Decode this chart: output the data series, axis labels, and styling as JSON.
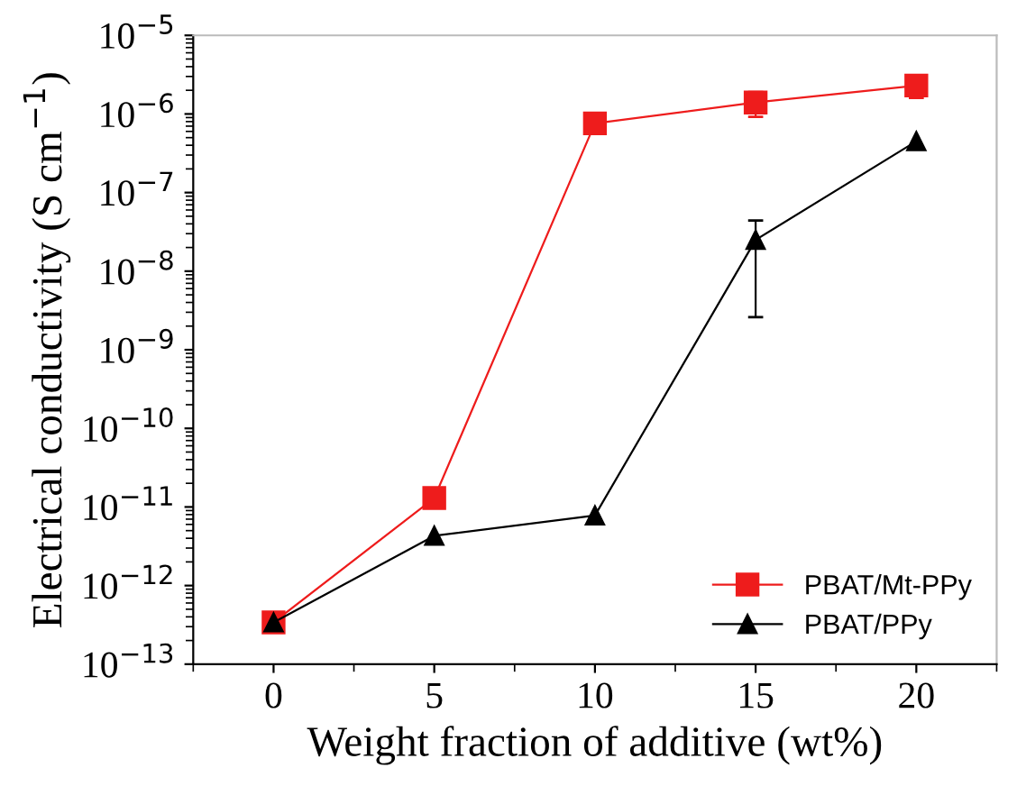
{
  "chart_data": {
    "type": "line",
    "xlabel": "Weight fraction of additive (wt%)",
    "ylabel": "Electrical conductivity (S cm$^{−1}$)",
    "x": [
      0,
      5,
      10,
      15,
      20
    ],
    "series": [
      {
        "name": "PBAT/Mt-PPy",
        "color": "#ee1c1c",
        "marker": "square",
        "values": [
          3.4e-13,
          1.3e-11,
          7.6e-07,
          1.4e-06,
          2.3e-06
        ],
        "errors": [
          null,
          null,
          null,
          [
            9.2e-07,
            1.9e-06
          ],
          [
            1.6e-06,
            3e-06
          ]
        ]
      },
      {
        "name": "PBAT/PPy",
        "color": "#000000",
        "marker": "triangle",
        "values": [
          3.4e-13,
          4.3e-12,
          7.8e-12,
          2.5e-08,
          4.5e-07
        ],
        "errors": [
          null,
          null,
          null,
          [
            2.6e-09,
            4.4e-08
          ],
          null
        ]
      }
    ],
    "log": "y",
    "xlim": [
      -2.5,
      22.5
    ],
    "xticks": [
      0,
      5,
      10,
      15,
      20
    ],
    "ylim": [
      1e-13,
      1e-05
    ],
    "yticks": [
      {
        "value": 1e-13,
        "label": "10$^{−13}$"
      },
      {
        "value": 1e-12,
        "label": "10$^{−12}$"
      },
      {
        "value": 1e-11,
        "label": "10$^{−11}$"
      },
      {
        "value": 1e-10,
        "label": "10$^{−10}$"
      },
      {
        "value": 1e-09,
        "label": "10$^{−9}$"
      },
      {
        "value": 1e-08,
        "label": "10$^{−8}$"
      },
      {
        "value": 1e-07,
        "label": "10$^{−7}$"
      },
      {
        "value": 1e-06,
        "label": "10$^{−6}$"
      },
      {
        "value": 1e-05,
        "label": "10$^{−5}$"
      }
    ],
    "legend": "bottom right",
    "grid": false,
    "line_style": "solid"
  }
}
